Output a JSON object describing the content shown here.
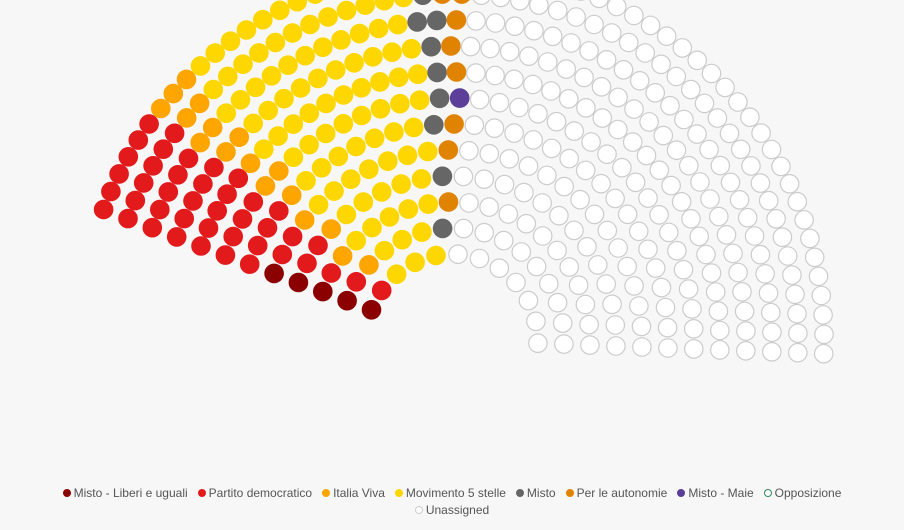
{
  "chart_data": {
    "type": "parliament",
    "total_seats": 400,
    "series": [
      {
        "name": "Misto - Liberi e uguali",
        "seats": 5,
        "color": "#8b0000",
        "border": "#8b0000"
      },
      {
        "name": "Partito democratico",
        "seats": 42,
        "color": "#e31a1c",
        "border": "#e31a1c"
      },
      {
        "name": "Italia Viva",
        "seats": 17,
        "color": "#ffa500",
        "border": "#ffa500"
      },
      {
        "name": "Movimento 5 stelle",
        "seats": 94,
        "color": "#ffd700",
        "border": "#ffd700"
      },
      {
        "name": "Misto",
        "seats": 10,
        "color": "#666666",
        "border": "#666666"
      },
      {
        "name": "Per le autonomie",
        "seats": 9,
        "color": "#e08300",
        "border": "#e08300"
      },
      {
        "name": "Misto - Maie",
        "seats": 2,
        "color": "#5b3f99",
        "border": "#5b3f99"
      },
      {
        "name": "Opposizione",
        "seats": 0,
        "color": "#ffffff",
        "border": "#2e8b57"
      },
      {
        "name": "Unassigned",
        "seats": 221,
        "color": "#ffffff",
        "border": "#cccccc"
      }
    ],
    "legend_position": "bottom"
  }
}
